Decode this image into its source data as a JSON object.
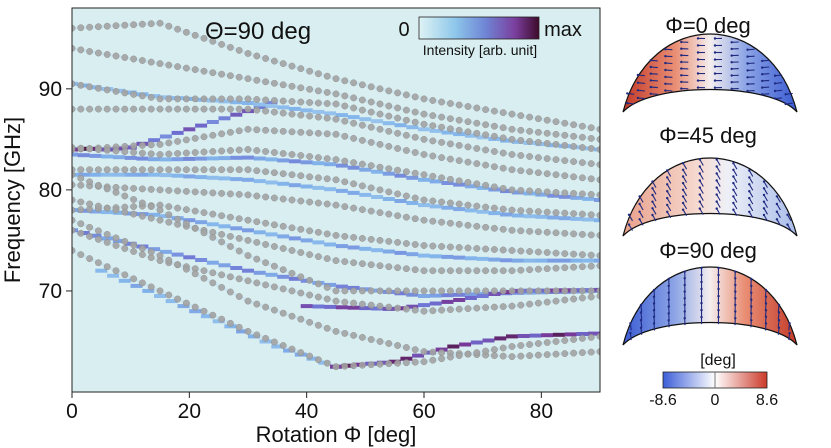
{
  "chart_data": [
    {
      "type": "heatmap",
      "title": "Θ=90 deg",
      "xlabel": "Rotation Φ [deg]",
      "ylabel": "Frequency [GHz]",
      "xlim": [
        0,
        90
      ],
      "ylim": [
        60,
        98
      ],
      "xticks": [
        0,
        20,
        40,
        60,
        80
      ],
      "yticks": [
        70,
        80,
        90
      ],
      "colorbar": {
        "min_label": "0",
        "max_label": "max",
        "label": "Intensity [arb. unit]",
        "colors": [
          "#dff3f5",
          "#8ec7ea",
          "#6f86d6",
          "#7b3f9e",
          "#3d0a2a"
        ]
      },
      "background_color": "#d9eef0",
      "marker_color": "#a3a3a3",
      "mode_curves": [
        {
          "x": [
            0,
            15,
            30,
            45,
            60,
            75,
            90
          ],
          "y": [
            96.0,
            96.5,
            93.5,
            91.0,
            89.0,
            87.5,
            86.0
          ]
        },
        {
          "x": [
            0,
            15,
            30,
            45,
            60,
            75,
            90
          ],
          "y": [
            94.0,
            92.5,
            91.0,
            89.5,
            87.5,
            86.0,
            85.0
          ]
        },
        {
          "x": [
            0,
            15,
            30,
            45,
            60,
            75,
            90
          ],
          "y": [
            90.5,
            89.0,
            89.0,
            88.5,
            86.5,
            85.0,
            84.0
          ]
        },
        {
          "x": [
            0,
            15,
            30,
            45,
            60,
            75,
            90
          ],
          "y": [
            88.0,
            88.0,
            88.0,
            87.0,
            85.0,
            83.5,
            82.5
          ]
        },
        {
          "x": [
            0,
            15,
            30,
            45,
            60,
            75,
            90
          ],
          "y": [
            84.0,
            84.5,
            86.0,
            85.5,
            83.5,
            82.0,
            81.0
          ]
        },
        {
          "x": [
            0,
            15,
            30,
            45,
            60,
            75,
            90
          ],
          "y": [
            84.2,
            83.5,
            84.0,
            83.0,
            81.5,
            80.0,
            79.5
          ]
        },
        {
          "x": [
            0,
            15,
            30,
            45,
            60,
            75,
            90
          ],
          "y": [
            82.0,
            82.0,
            82.0,
            81.0,
            79.0,
            78.0,
            77.5
          ]
        },
        {
          "x": [
            0,
            15,
            30,
            45,
            60,
            75,
            90
          ],
          "y": [
            80.5,
            80.0,
            79.5,
            78.5,
            77.0,
            76.0,
            75.5
          ]
        },
        {
          "x": [
            0,
            15,
            30,
            45,
            60,
            75,
            90
          ],
          "y": [
            78.0,
            78.5,
            77.0,
            75.5,
            74.5,
            74.0,
            73.5
          ]
        },
        {
          "x": [
            0,
            15,
            30,
            45,
            60,
            75,
            90
          ],
          "y": [
            79.0,
            77.0,
            75.0,
            73.0,
            72.0,
            72.0,
            72.5
          ]
        },
        {
          "x": [
            0,
            15,
            30,
            45,
            60,
            75,
            90
          ],
          "y": [
            81.5,
            78.0,
            73.5,
            70.0,
            70.0,
            70.0,
            70.0
          ]
        },
        {
          "x": [
            0,
            15,
            30,
            45,
            60,
            75,
            90
          ],
          "y": [
            76.0,
            73.0,
            71.0,
            69.0,
            68.0,
            68.5,
            69.5
          ]
        },
        {
          "x": [
            0,
            15,
            30,
            45,
            60,
            75,
            90
          ],
          "y": [
            77.0,
            73.5,
            69.0,
            66.0,
            64.0,
            63.5,
            64.0
          ]
        },
        {
          "x": [
            0,
            15,
            30,
            45,
            60,
            75,
            90
          ],
          "y": [
            74.0,
            70.0,
            66.0,
            62.5,
            63.0,
            64.5,
            65.5
          ]
        }
      ],
      "intensity_curves": [
        {
          "x": [
            0,
            3,
            6,
            10
          ],
          "y": [
            84.0,
            84.1,
            84.0,
            84.2
          ],
          "intensity": 0.95
        },
        {
          "x": [
            10,
            20,
            30,
            35
          ],
          "y": [
            84.2,
            86.0,
            87.8,
            88.8
          ],
          "intensity": 0.7
        },
        {
          "x": [
            0,
            15,
            30,
            45,
            60,
            75,
            90
          ],
          "y": [
            90.5,
            89.2,
            88.6,
            87.5,
            86.0,
            84.8,
            84.0
          ],
          "intensity": 0.35
        },
        {
          "x": [
            0,
            15,
            30,
            45,
            60,
            75,
            90
          ],
          "y": [
            81.5,
            81.5,
            81.0,
            80.0,
            78.5,
            77.5,
            77.0
          ],
          "intensity": 0.4
        },
        {
          "x": [
            0,
            15,
            30,
            45,
            60,
            75,
            90
          ],
          "y": [
            78.0,
            77.5,
            76.0,
            74.5,
            73.5,
            73.0,
            73.0
          ],
          "intensity": 0.45
        },
        {
          "x": [
            0,
            15,
            30,
            45,
            60,
            75,
            90
          ],
          "y": [
            76.0,
            74.0,
            72.0,
            70.5,
            69.5,
            69.8,
            70.0
          ],
          "intensity": 0.55
        },
        {
          "x": [
            40,
            55,
            65,
            75,
            90
          ],
          "y": [
            68.5,
            68.2,
            69.0,
            70.0,
            70.1
          ],
          "intensity": 0.8
        },
        {
          "x": [
            5,
            15,
            25,
            35,
            45
          ],
          "y": [
            72.0,
            69.5,
            67.0,
            64.5,
            62.5
          ],
          "intensity": 0.4
        },
        {
          "x": [
            45,
            55,
            65,
            75,
            90
          ],
          "y": [
            62.5,
            63.0,
            64.5,
            65.5,
            65.8
          ],
          "intensity": 0.9
        },
        {
          "x": [
            0,
            15,
            30,
            45,
            60,
            75,
            90
          ],
          "y": [
            83.5,
            83.0,
            83.2,
            82.5,
            81.0,
            79.8,
            79.0
          ],
          "intensity": 0.5
        }
      ]
    },
    {
      "type": "heatmap",
      "panels": [
        {
          "title": "Φ=0 deg",
          "gradient": "red-left-blue-right"
        },
        {
          "title": "Φ=45 deg",
          "gradient": "light-red-left-light-blue-right"
        },
        {
          "title": "Φ=90 deg",
          "gradient": "blue-left-red-right"
        }
      ],
      "colorbar": {
        "label": "[deg]",
        "ticks": [
          "-8.6",
          "0",
          "8.6"
        ],
        "colors": [
          "#3c5ed8",
          "#ffffff",
          "#cc3a2a"
        ]
      }
    }
  ]
}
